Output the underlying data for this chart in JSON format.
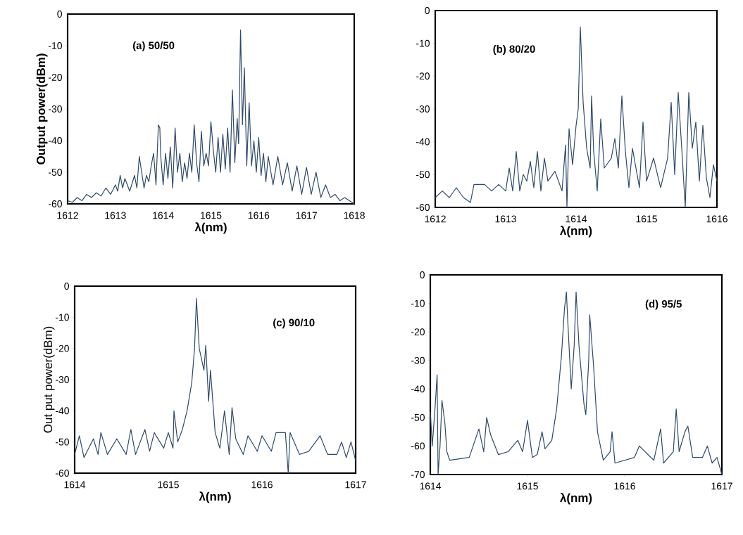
{
  "chart_data": [
    {
      "type": "line",
      "xlabel": "λ(nm)",
      "ylabel": "Output power(dBm)",
      "annotations": [
        "(a) 50/50"
      ],
      "xlim": [
        1612,
        1618
      ],
      "ylim": [
        -60,
        0
      ],
      "xticks": [
        1612,
        1613,
        1614,
        1615,
        1616,
        1617,
        1618
      ],
      "yticks": [
        -60,
        -50,
        -40,
        -30,
        -20,
        -10,
        0
      ],
      "marker": "none",
      "line_style": "solid",
      "series": [
        {
          "color": "#2e4a6b",
          "x": [
            1612.0,
            1612.1,
            1612.2,
            1612.3,
            1612.4,
            1612.5,
            1612.6,
            1612.7,
            1612.8,
            1612.9,
            1613.0,
            1613.05,
            1613.1,
            1613.15,
            1613.2,
            1613.3,
            1613.4,
            1613.45,
            1613.5,
            1613.55,
            1613.6,
            1613.65,
            1613.7,
            1613.75,
            1613.8,
            1613.85,
            1613.9,
            1613.93,
            1613.95,
            1614.0,
            1614.05,
            1614.1,
            1614.15,
            1614.2,
            1614.25,
            1614.3,
            1614.35,
            1614.4,
            1614.45,
            1614.5,
            1614.55,
            1614.6,
            1614.65,
            1614.7,
            1614.75,
            1614.8,
            1614.85,
            1614.9,
            1614.95,
            1615.0,
            1615.05,
            1615.1,
            1615.15,
            1615.2,
            1615.25,
            1615.3,
            1615.35,
            1615.4,
            1615.45,
            1615.5,
            1615.55,
            1615.58,
            1615.62,
            1615.66,
            1615.7,
            1615.75,
            1615.8,
            1615.85,
            1615.9,
            1615.95,
            1616.0,
            1616.05,
            1616.1,
            1616.15,
            1616.2,
            1616.3,
            1616.4,
            1616.5,
            1616.6,
            1616.7,
            1616.8,
            1616.9,
            1617.0,
            1617.1,
            1617.2,
            1617.3,
            1617.4,
            1617.5,
            1617.6,
            1617.7,
            1617.8,
            1617.9,
            1618.0
          ],
          "values": [
            -59,
            -59.5,
            -58,
            -59,
            -57,
            -58,
            -56.5,
            -57.5,
            -55,
            -57,
            -54,
            -56,
            -51,
            -55,
            -52,
            -56,
            -51,
            -55,
            -45,
            -50,
            -55,
            -51,
            -53,
            -48,
            -44,
            -54,
            -35,
            -36,
            -45,
            -54,
            -44,
            -52,
            -42,
            -55,
            -36,
            -50,
            -44,
            -53,
            -47,
            -52,
            -44,
            -50,
            -35,
            -47,
            -53,
            -37,
            -48,
            -44,
            -48,
            -34,
            -43,
            -50,
            -39,
            -50,
            -38,
            -49,
            -36,
            -50,
            -24,
            -47,
            -33,
            -41,
            -5,
            -35,
            -17,
            -48,
            -28,
            -48,
            -40,
            -50,
            -39,
            -51,
            -44,
            -53,
            -45,
            -54,
            -45,
            -54,
            -47,
            -56,
            -48,
            -57,
            -48.5,
            -57,
            -50,
            -58,
            -54,
            -58,
            -57,
            -59,
            -58,
            -59,
            -60
          ]
        }
      ]
    },
    {
      "type": "line",
      "xlabel": "λ(nm)",
      "annotations": [
        "(b) 80/20"
      ],
      "xlim": [
        1612,
        1616
      ],
      "ylim": [
        -60,
        0
      ],
      "xticks": [
        1612,
        1613,
        1614,
        1615,
        1616
      ],
      "yticks": [
        -60,
        -50,
        -40,
        -30,
        -20,
        -10,
        0
      ],
      "marker": "none",
      "line_style": "solid",
      "series": [
        {
          "color": "#2e4a6b",
          "x": [
            1612.0,
            1612.1,
            1612.2,
            1612.3,
            1612.4,
            1612.5,
            1612.55,
            1612.7,
            1612.8,
            1612.9,
            1613.0,
            1613.05,
            1613.1,
            1613.15,
            1613.2,
            1613.25,
            1613.3,
            1613.35,
            1613.4,
            1613.45,
            1613.5,
            1613.55,
            1613.6,
            1613.7,
            1613.8,
            1613.85,
            1613.87,
            1613.9,
            1613.95,
            1614.0,
            1614.03,
            1614.06,
            1614.1,
            1614.15,
            1614.2,
            1614.22,
            1614.25,
            1614.3,
            1614.35,
            1614.4,
            1614.5,
            1614.55,
            1614.6,
            1614.65,
            1614.7,
            1614.75,
            1614.8,
            1614.9,
            1614.95,
            1615.0,
            1615.1,
            1615.2,
            1615.3,
            1615.35,
            1615.4,
            1615.45,
            1615.5,
            1615.55,
            1615.6,
            1615.65,
            1615.7,
            1615.75,
            1615.8,
            1615.85,
            1615.9,
            1615.95,
            1616.0
          ],
          "values": [
            -57,
            -55,
            -57,
            -54,
            -57,
            -58.5,
            -53,
            -53,
            -55,
            -53,
            -55,
            -48,
            -55,
            -43,
            -55,
            -50,
            -52,
            -46,
            -54,
            -43,
            -55,
            -45,
            -52,
            -49,
            -55,
            -41,
            -60,
            -36,
            -47,
            -35,
            -30,
            -5,
            -28,
            -42,
            -48,
            -26,
            -43,
            -55,
            -33,
            -48,
            -45,
            -39,
            -48,
            -26,
            -43,
            -54,
            -42,
            -54,
            -34,
            -52,
            -45,
            -54,
            -45,
            -28,
            -50,
            -25,
            -42,
            -60,
            -25,
            -42,
            -34,
            -52,
            -35,
            -51,
            -57,
            -47,
            -52
          ]
        }
      ]
    },
    {
      "type": "line",
      "xlabel": "λ(nm)",
      "ylabel": "Out put power(dBm)",
      "annotations": [
        "(c) 90/10"
      ],
      "xlim": [
        1614,
        1617
      ],
      "ylim": [
        -60,
        0
      ],
      "xticks": [
        1614,
        1615,
        1616,
        1617
      ],
      "yticks": [
        -60,
        -50,
        -40,
        -30,
        -20,
        -10,
        0
      ],
      "marker": "none",
      "line_style": "solid",
      "series": [
        {
          "color": "#2e4a6b",
          "x": [
            1614.0,
            1614.05,
            1614.1,
            1614.2,
            1614.25,
            1614.28,
            1614.35,
            1614.45,
            1614.55,
            1614.6,
            1614.65,
            1614.75,
            1614.8,
            1614.85,
            1614.95,
            1615.0,
            1615.05,
            1615.06,
            1615.1,
            1615.15,
            1615.2,
            1615.25,
            1615.28,
            1615.3,
            1615.33,
            1615.38,
            1615.4,
            1615.43,
            1615.45,
            1615.5,
            1615.55,
            1615.6,
            1615.65,
            1615.68,
            1615.72,
            1615.8,
            1615.85,
            1615.95,
            1616.0,
            1616.1,
            1616.15,
            1616.25,
            1616.28,
            1616.3,
            1616.4,
            1616.5,
            1616.62,
            1616.7,
            1616.8,
            1616.85,
            1616.9,
            1616.95,
            1617.0
          ],
          "values": [
            -54,
            -48,
            -55,
            -49,
            -54,
            -47,
            -54,
            -49,
            -54,
            -46,
            -54,
            -46,
            -53,
            -47,
            -52,
            -47,
            -52,
            -40,
            -50,
            -46,
            -40,
            -31,
            -20,
            -4,
            -20,
            -27,
            -19,
            -37,
            -27,
            -47,
            -52,
            -40,
            -54,
            -39,
            -49,
            -54,
            -48,
            -53,
            -48,
            -53,
            -47,
            -47,
            -60,
            -47,
            -54,
            -53,
            -48,
            -54,
            -54,
            -50,
            -55,
            -50,
            -56
          ]
        }
      ]
    },
    {
      "type": "line",
      "xlabel": "λ(nm)",
      "annotations": [
        "(d) 95/5"
      ],
      "xlim": [
        1614,
        1617
      ],
      "ylim": [
        -70,
        0
      ],
      "xticks": [
        1614,
        1615,
        1616,
        1617
      ],
      "yticks": [
        -70,
        -60,
        -50,
        -40,
        -30,
        -20,
        -10,
        0
      ],
      "marker": "none",
      "line_style": "solid",
      "series": [
        {
          "color": "#2e4a6b",
          "x": [
            1614.0,
            1614.02,
            1614.05,
            1614.07,
            1614.08,
            1614.1,
            1614.12,
            1614.15,
            1614.17,
            1614.2,
            1614.4,
            1614.5,
            1614.55,
            1614.58,
            1614.62,
            1614.7,
            1614.8,
            1614.9,
            1614.95,
            1615.0,
            1615.05,
            1615.1,
            1615.15,
            1615.18,
            1615.25,
            1615.3,
            1615.35,
            1615.38,
            1615.4,
            1615.42,
            1615.45,
            1615.48,
            1615.5,
            1615.53,
            1615.58,
            1615.6,
            1615.63,
            1615.64,
            1615.68,
            1615.72,
            1615.78,
            1615.85,
            1615.87,
            1615.9,
            1616.1,
            1616.15,
            1616.3,
            1616.37,
            1616.4,
            1616.5,
            1616.53,
            1616.56,
            1616.62,
            1616.65,
            1616.7,
            1616.8,
            1616.85,
            1616.9,
            1616.95,
            1617.0
          ],
          "values": [
            -48,
            -60,
            -46,
            -35,
            -70,
            -60,
            -44,
            -52,
            -62,
            -65,
            -64,
            -54,
            -62,
            -50,
            -56,
            -63,
            -62,
            -58,
            -62,
            -51,
            -64,
            -63,
            -55,
            -61,
            -58,
            -47,
            -28,
            -12,
            -6,
            -20,
            -40,
            -25,
            -6,
            -25,
            -45,
            -49,
            -30,
            -14,
            -32,
            -55,
            -65,
            -62,
            -55,
            -66,
            -64,
            -60,
            -65,
            -54,
            -66,
            -62,
            -47,
            -62,
            -55,
            -53,
            -64,
            -64,
            -60,
            -66,
            -64,
            -70
          ]
        }
      ]
    }
  ]
}
